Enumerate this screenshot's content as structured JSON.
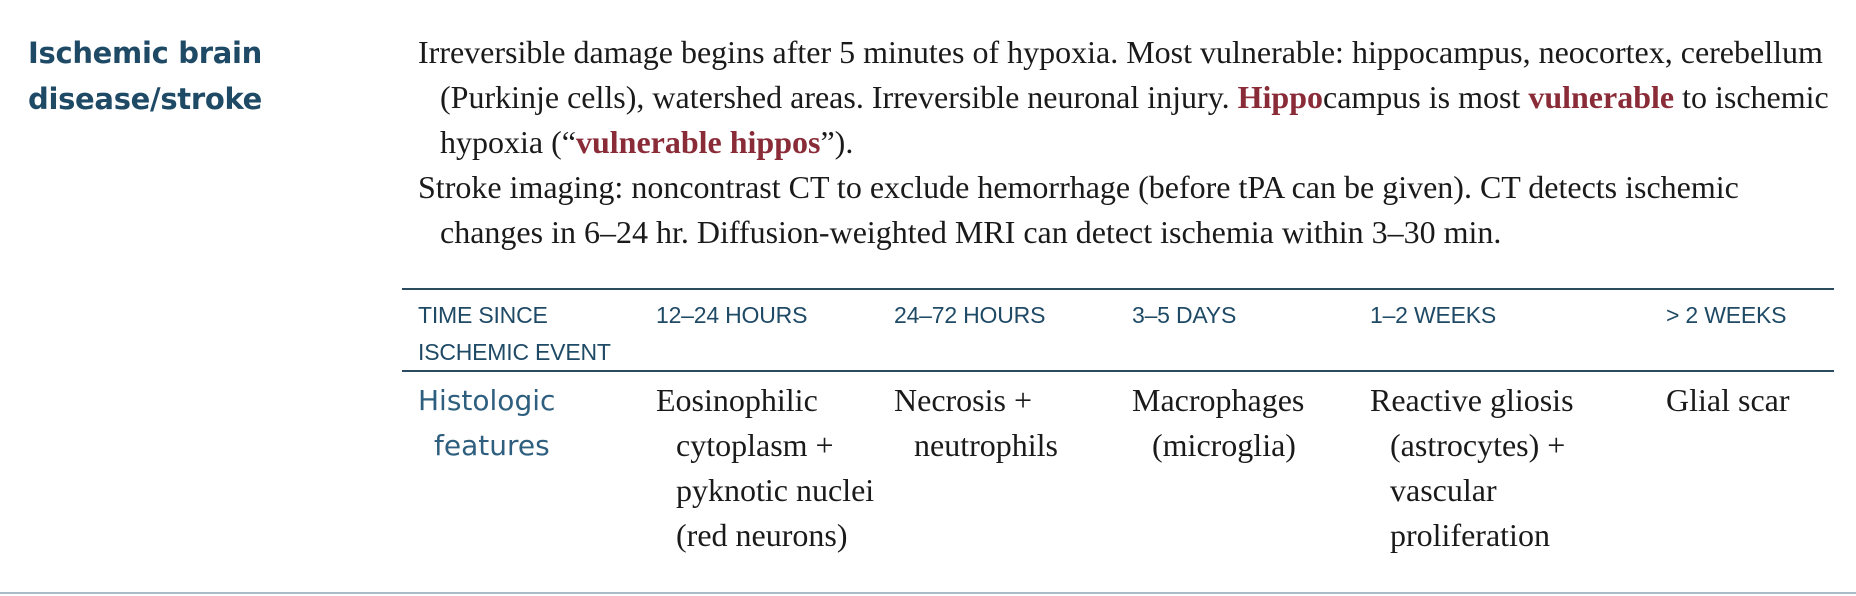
{
  "heading": {
    "line1": "Ischemic brain",
    "line2": "disease/stroke"
  },
  "paragraph1": {
    "part1": "Irreversible damage begins after 5 minutes of hypoxia. Most vulnerable: hippocampus, neocortex, cerebellum (Purkinje cells), watershed areas. Irreversible neuronal injury. ",
    "hl1": "Hippo",
    "part2": "campus is most ",
    "hl2": "vulnerable",
    "part3": " to ischemic hypoxia (“",
    "hl3": "vulnerable hippos",
    "part4": "”)."
  },
  "paragraph2": "Stroke imaging: noncontrast CT to exclude hemorrhage (before tPA can be given). CT detects ischemic changes in 6–24 hr. Diffusion-weighted MRI can detect ischemia within 3–30 min.",
  "table": {
    "headers": [
      "TIME SINCE ISCHEMIC EVENT",
      "12–24 HOURS",
      "24–72 HOURS",
      "3–5 DAYS",
      "1–2 WEEKS",
      "> 2 WEEKS"
    ],
    "row": {
      "label": "Histologic features",
      "cells": [
        "Eosinophilic cytoplasm + pyknotic nuclei (red neurons)",
        "Necrosis + neutrophils",
        "Macrophages (microglia)",
        "Reactive gliosis (astrocytes) + vascular proliferation",
        "Glial scar"
      ]
    }
  },
  "colors": {
    "heading": "#1f4a66",
    "highlight": "#8a2c38",
    "rule": "#2b4b5e"
  }
}
